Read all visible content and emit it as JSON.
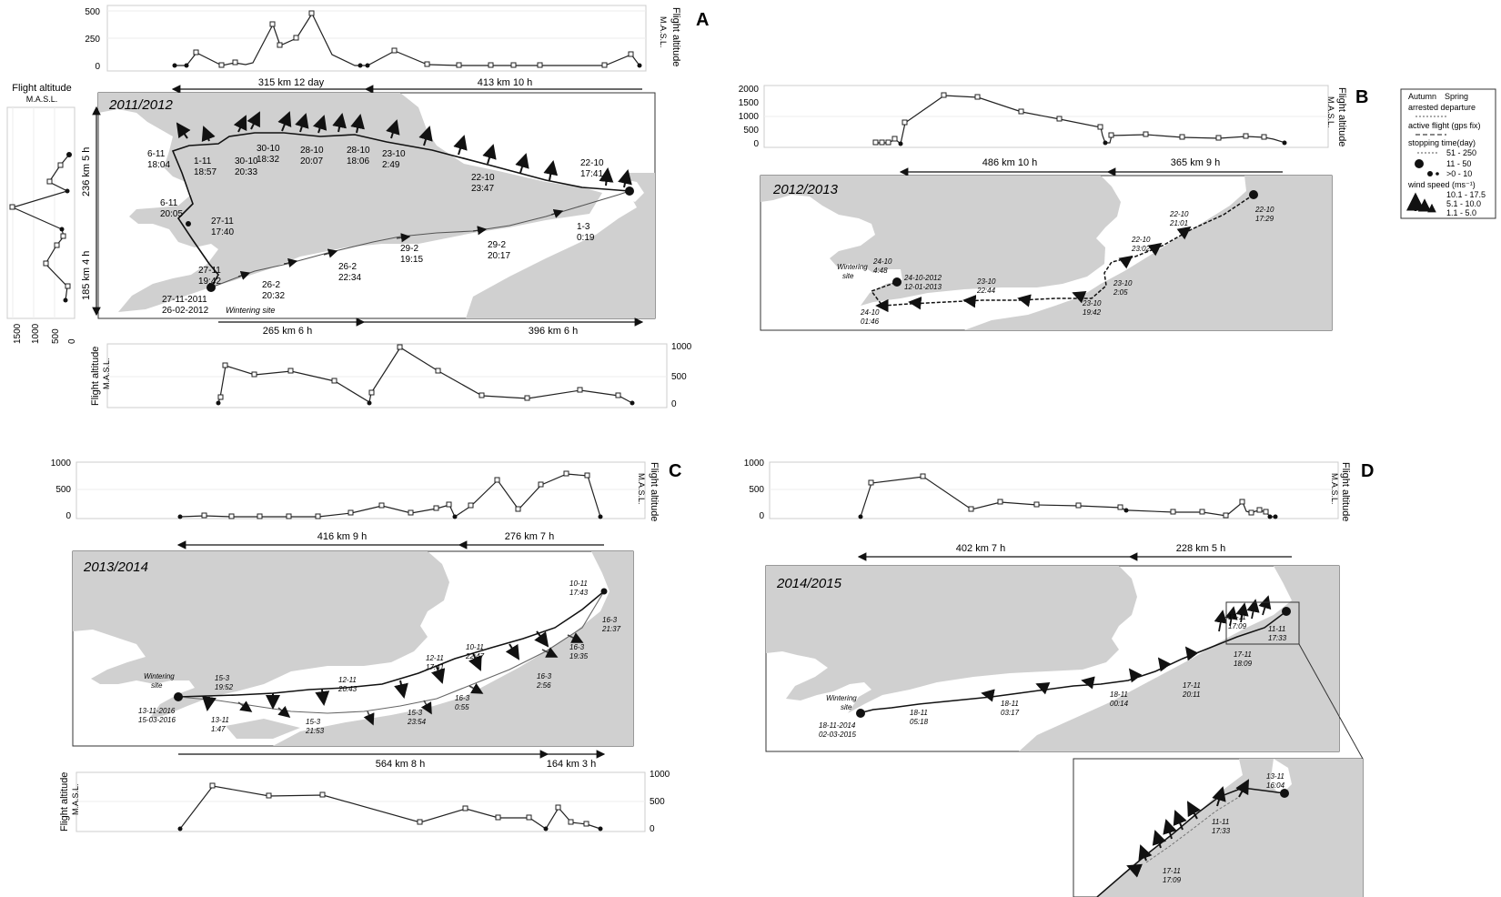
{
  "panels": [
    {
      "letter": "A",
      "year": "2011/2012",
      "top_distances": [
        "315 km 12 day",
        "413 km 10 h"
      ],
      "bottom_distances": [
        "265 km 6 h",
        "396 km 6 h"
      ],
      "side_distances": [
        "236 km 5 h",
        "185 km 4 h"
      ],
      "top_alt_ticks": [
        "500",
        "250",
        "0"
      ],
      "bottom_alt_ticks": [
        "1000",
        "500",
        "0"
      ],
      "side_alt_ticks": [
        "1500",
        "1000",
        "500",
        "0"
      ],
      "label_1": "6-11",
      "label_2": "18:04",
      "label_3": "1-11",
      "label_4": "18:57",
      "label_5": "30-10",
      "label_6": "20:33",
      "label_7": "30-10",
      "label_8": "18:32",
      "label_9": "28-10",
      "label_10": "20:07",
      "label_11": "28-10",
      "label_12": "18:06",
      "label_13": "23-10",
      "label_14": "2:49",
      "label_15": "22-10",
      "label_16": "23:47",
      "label_17": "22-10",
      "label_18": "17:41",
      "label_19": "6-11",
      "label_20": "20:05",
      "label_21": "27-11",
      "label_22": "17:40",
      "label_23": "27-11",
      "label_24": "19:42",
      "label_25": "27-11-2011",
      "label_26": "26-02-2012",
      "label_27": "Wintering site",
      "label_28": "26-2",
      "label_29": "20:32",
      "label_30": "26-2",
      "label_31": "22:34",
      "label_32": "29-2",
      "label_33": "19:15",
      "label_34": "29-2",
      "label_35": "20:17",
      "label_36": "1-3",
      "label_37": "0:19"
    },
    {
      "letter": "B",
      "year": "2012/2013",
      "top_distances": [
        "486 km 10 h",
        "365 km 9 h"
      ],
      "top_alt_ticks": [
        "2000",
        "1500",
        "1000",
        "500",
        "0"
      ],
      "label_1": "22-10",
      "label_2": "17:29",
      "label_3": "22-10",
      "label_4": "21:01",
      "label_5": "22-10",
      "label_6": "23:02",
      "label_7": "23-10",
      "label_8": "2:05",
      "label_9": "23-10",
      "label_10": "19:42",
      "label_11": "23-10",
      "label_12": "22:44",
      "label_13": "24-10",
      "label_14": "4:48",
      "label_15": "24-10-2012",
      "label_16": "12-01-2013",
      "label_17": "Wintering",
      "label_18": "site",
      "label_19": "24-10",
      "label_20": "01:46"
    },
    {
      "letter": "C",
      "year": "2013/2014",
      "top_distances": [
        "416 km 9 h",
        "276 km 7 h"
      ],
      "bottom_distances": [
        "564 km 8 h",
        "164 km 3 h"
      ],
      "top_alt_ticks": [
        "1000",
        "500",
        "0"
      ],
      "bottom_alt_ticks": [
        "1000",
        "500",
        "0"
      ],
      "label_1": "10-11",
      "label_2": "17:43",
      "label_3": "16-3",
      "label_4": "21:37",
      "label_5": "16-3",
      "label_6": "19:35",
      "label_7": "10-11",
      "label_8": "22:47",
      "label_9": "12-11",
      "label_10": "17:41",
      "label_11": "12-11",
      "label_12": "20:43",
      "label_13": "16-3",
      "label_14": "2:56",
      "label_15": "16-3",
      "label_16": "0:55",
      "label_17": "15-3",
      "label_18": "23:54",
      "label_19": "15-3",
      "label_20": "21:53",
      "label_21": "15-3",
      "label_22": "19:52",
      "label_23": "13-11",
      "label_24": "1:47",
      "label_25": "Wintering",
      "label_26": "site",
      "label_27": "13-11-2016",
      "label_28": "15-03-2016"
    },
    {
      "letter": "D",
      "year": "2014/2015",
      "top_distances": [
        "402 km 7 h",
        "228 km 5 h"
      ],
      "top_alt_ticks": [
        "1000",
        "500",
        "0"
      ],
      "label_1": "17-11",
      "label_2": "17:09",
      "label_3": "11-11",
      "label_4": "17:33",
      "label_5": "17-11",
      "label_6": "18:09",
      "label_7": "17-11",
      "label_8": "20:11",
      "label_9": "18-11",
      "label_10": "00:14",
      "label_11": "18-11",
      "label_12": "03:17",
      "label_13": "18-11",
      "label_14": "05:18",
      "label_15": "Wintering",
      "label_16": "site",
      "label_17": "18-11-2014",
      "label_18": "02-03-2015",
      "label_19": "13-11",
      "label_20": "16:04",
      "label_21": "11-11",
      "label_22": "17:33",
      "label_23": "17-11",
      "label_24": "17:09"
    }
  ],
  "axis_title": "Flight altitude",
  "axis_unit": "M.A.S.L.",
  "legend": {
    "header_autumn": "Autumn",
    "header_spring": "Spring",
    "arrested": "arrested departure",
    "active": "active flight (gps fix)",
    "stop_title": "stopping time(day)",
    "stop_1": "51 - 250",
    "stop_2": "11 - 50",
    "stop_3": ">0 - 10",
    "wind_title": "wind speed (ms⁻¹)",
    "wind_1": "10.1 - 17.5",
    "wind_2": "5.1 - 10.0",
    "wind_3": "1.1 -   5.0"
  },
  "colors": {
    "land": "#d0d0d0",
    "sea": "#ffffff",
    "track": "#111111",
    "grid": "#e6e6e6"
  }
}
